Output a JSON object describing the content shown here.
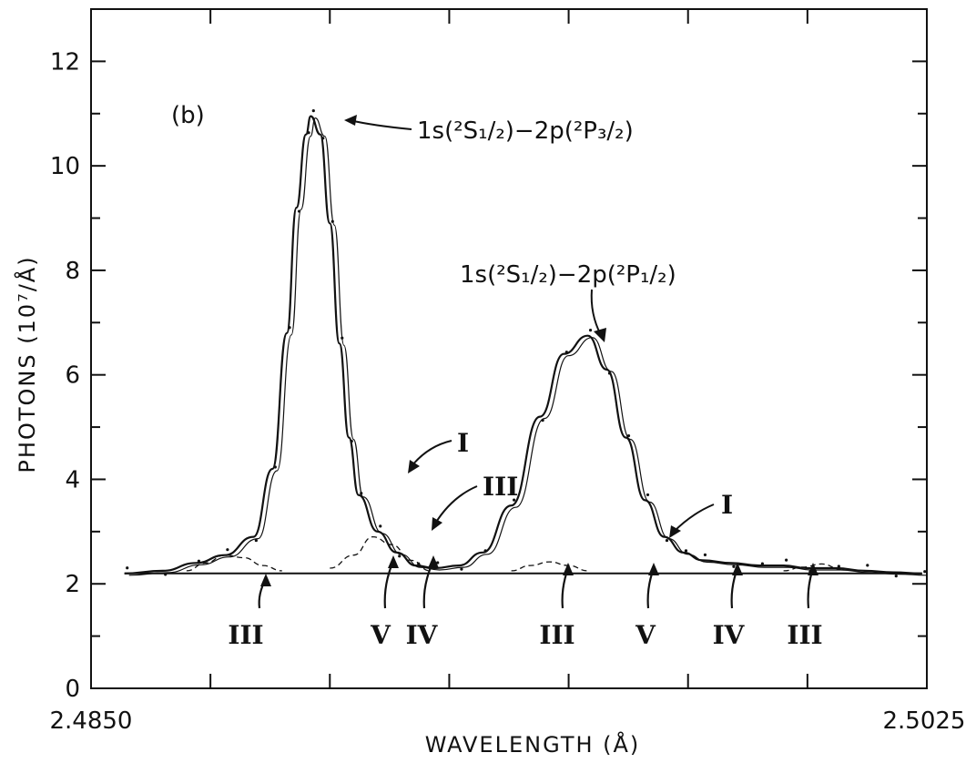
{
  "chart_data": {
    "type": "line",
    "panel_label": "(b)",
    "xlabel": "WAVELENGTH (Å)",
    "ylabel": "PHOTONS (10⁷/Å)",
    "xlim": [
      2.485,
      2.5025
    ],
    "ylim": [
      0,
      13
    ],
    "x_tick_labels": [
      "2.4850",
      "2.5025"
    ],
    "y_ticks": [
      0,
      2,
      4,
      6,
      8,
      10,
      12
    ],
    "y_tick_labels": [
      "0",
      "2",
      "4",
      "6",
      "8",
      "10",
      "12"
    ],
    "baseline": 2.2,
    "annotations": {
      "peak_a": "1s(²S₁/₂)−2p(²P₃/₂)",
      "peak_b": "1s(²S₁/₂)−2p(²P₁/₂)",
      "sat_I_1": "I",
      "sat_III_1": "III",
      "sat_I_2": "I"
    },
    "bottom_labels": [
      "III",
      "V",
      "IV",
      "III",
      "V",
      "IV",
      "III"
    ],
    "series": [
      {
        "role": "fit",
        "x": [
          2.4857,
          2.4865,
          2.4872,
          2.4878,
          2.4884,
          2.4888,
          2.4891,
          2.4893,
          2.4895,
          2.4896,
          2.4898,
          2.49,
          2.4902,
          2.4904,
          2.4906,
          2.491,
          2.4914,
          2.4918,
          2.4922,
          2.4927,
          2.4932,
          2.4938,
          2.4944,
          2.4949,
          2.4954,
          2.4958,
          2.4962,
          2.4966,
          2.497,
          2.4974,
          2.4978,
          2.4984,
          2.499,
          2.4995,
          2.5,
          2.5006,
          2.5012,
          2.5018,
          2.5024
        ],
        "y": [
          2.2,
          2.25,
          2.4,
          2.55,
          2.9,
          4.2,
          6.8,
          9.2,
          10.6,
          10.95,
          10.6,
          8.9,
          6.6,
          4.8,
          3.7,
          3.0,
          2.6,
          2.35,
          2.3,
          2.35,
          2.6,
          3.5,
          5.2,
          6.4,
          6.75,
          6.1,
          4.8,
          3.6,
          2.9,
          2.6,
          2.45,
          2.4,
          2.35,
          2.35,
          2.3,
          2.3,
          2.25,
          2.22,
          2.2
        ]
      },
      {
        "role": "satellite",
        "x": [
          2.487,
          2.4874,
          2.4878,
          2.4882,
          2.4886,
          2.489
        ],
        "y": [
          2.25,
          2.4,
          2.55,
          2.5,
          2.35,
          2.25
        ]
      },
      {
        "role": "satellite",
        "x": [
          2.49,
          2.4905,
          2.4909,
          2.4913,
          2.4917,
          2.4921
        ],
        "y": [
          2.3,
          2.55,
          2.9,
          2.75,
          2.45,
          2.25
        ]
      },
      {
        "role": "satellite",
        "x": [
          2.4938,
          2.4942,
          2.4946,
          2.495,
          2.4954
        ],
        "y": [
          2.25,
          2.35,
          2.42,
          2.35,
          2.25
        ]
      },
      {
        "role": "satellite",
        "x": [
          2.4995,
          2.4999,
          2.5003,
          2.5007
        ],
        "y": [
          2.25,
          2.32,
          2.38,
          2.28
        ]
      }
    ]
  }
}
